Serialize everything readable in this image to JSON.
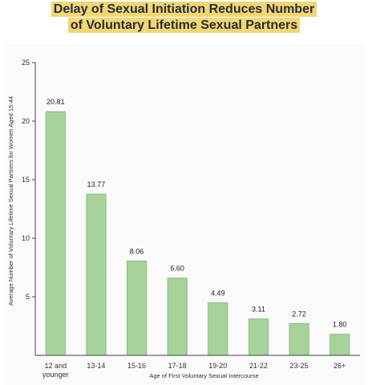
{
  "title_lines": [
    "Delay of Sexual Initiation Reduces Number",
    "of Voluntary Lifetime Sexual Partners"
  ],
  "colors": {
    "title_highlight": "#f0d774",
    "bar_fill": "#a5d39a",
    "bar_stroke": "#7fb476",
    "axis": "#444444"
  },
  "chart_data": {
    "type": "bar",
    "title": "Delay of Sexual Initiation Reduces Number of Voluntary Lifetime Sexual Partners",
    "xlabel": "Age of First Voluntary Sexual Intercourse",
    "ylabel": "Average Number of Voluntary Lifetime Sexual Partners for Women Aged 15-44",
    "categories": [
      "12 and younger",
      "13-14",
      "15-16",
      "17-18",
      "19-20",
      "21-22",
      "23-25",
      "26+"
    ],
    "values": [
      20.81,
      13.77,
      8.06,
      6.6,
      4.49,
      3.11,
      2.72,
      1.8
    ],
    "value_labels": [
      "20.81",
      "13.77",
      "8.06",
      "6.60",
      "4.49",
      "3.11",
      "2.72",
      "1.80"
    ],
    "ylim": [
      0,
      25
    ],
    "yticks": [
      5,
      10,
      15,
      20,
      25
    ],
    "grid": false,
    "legend": "none"
  }
}
